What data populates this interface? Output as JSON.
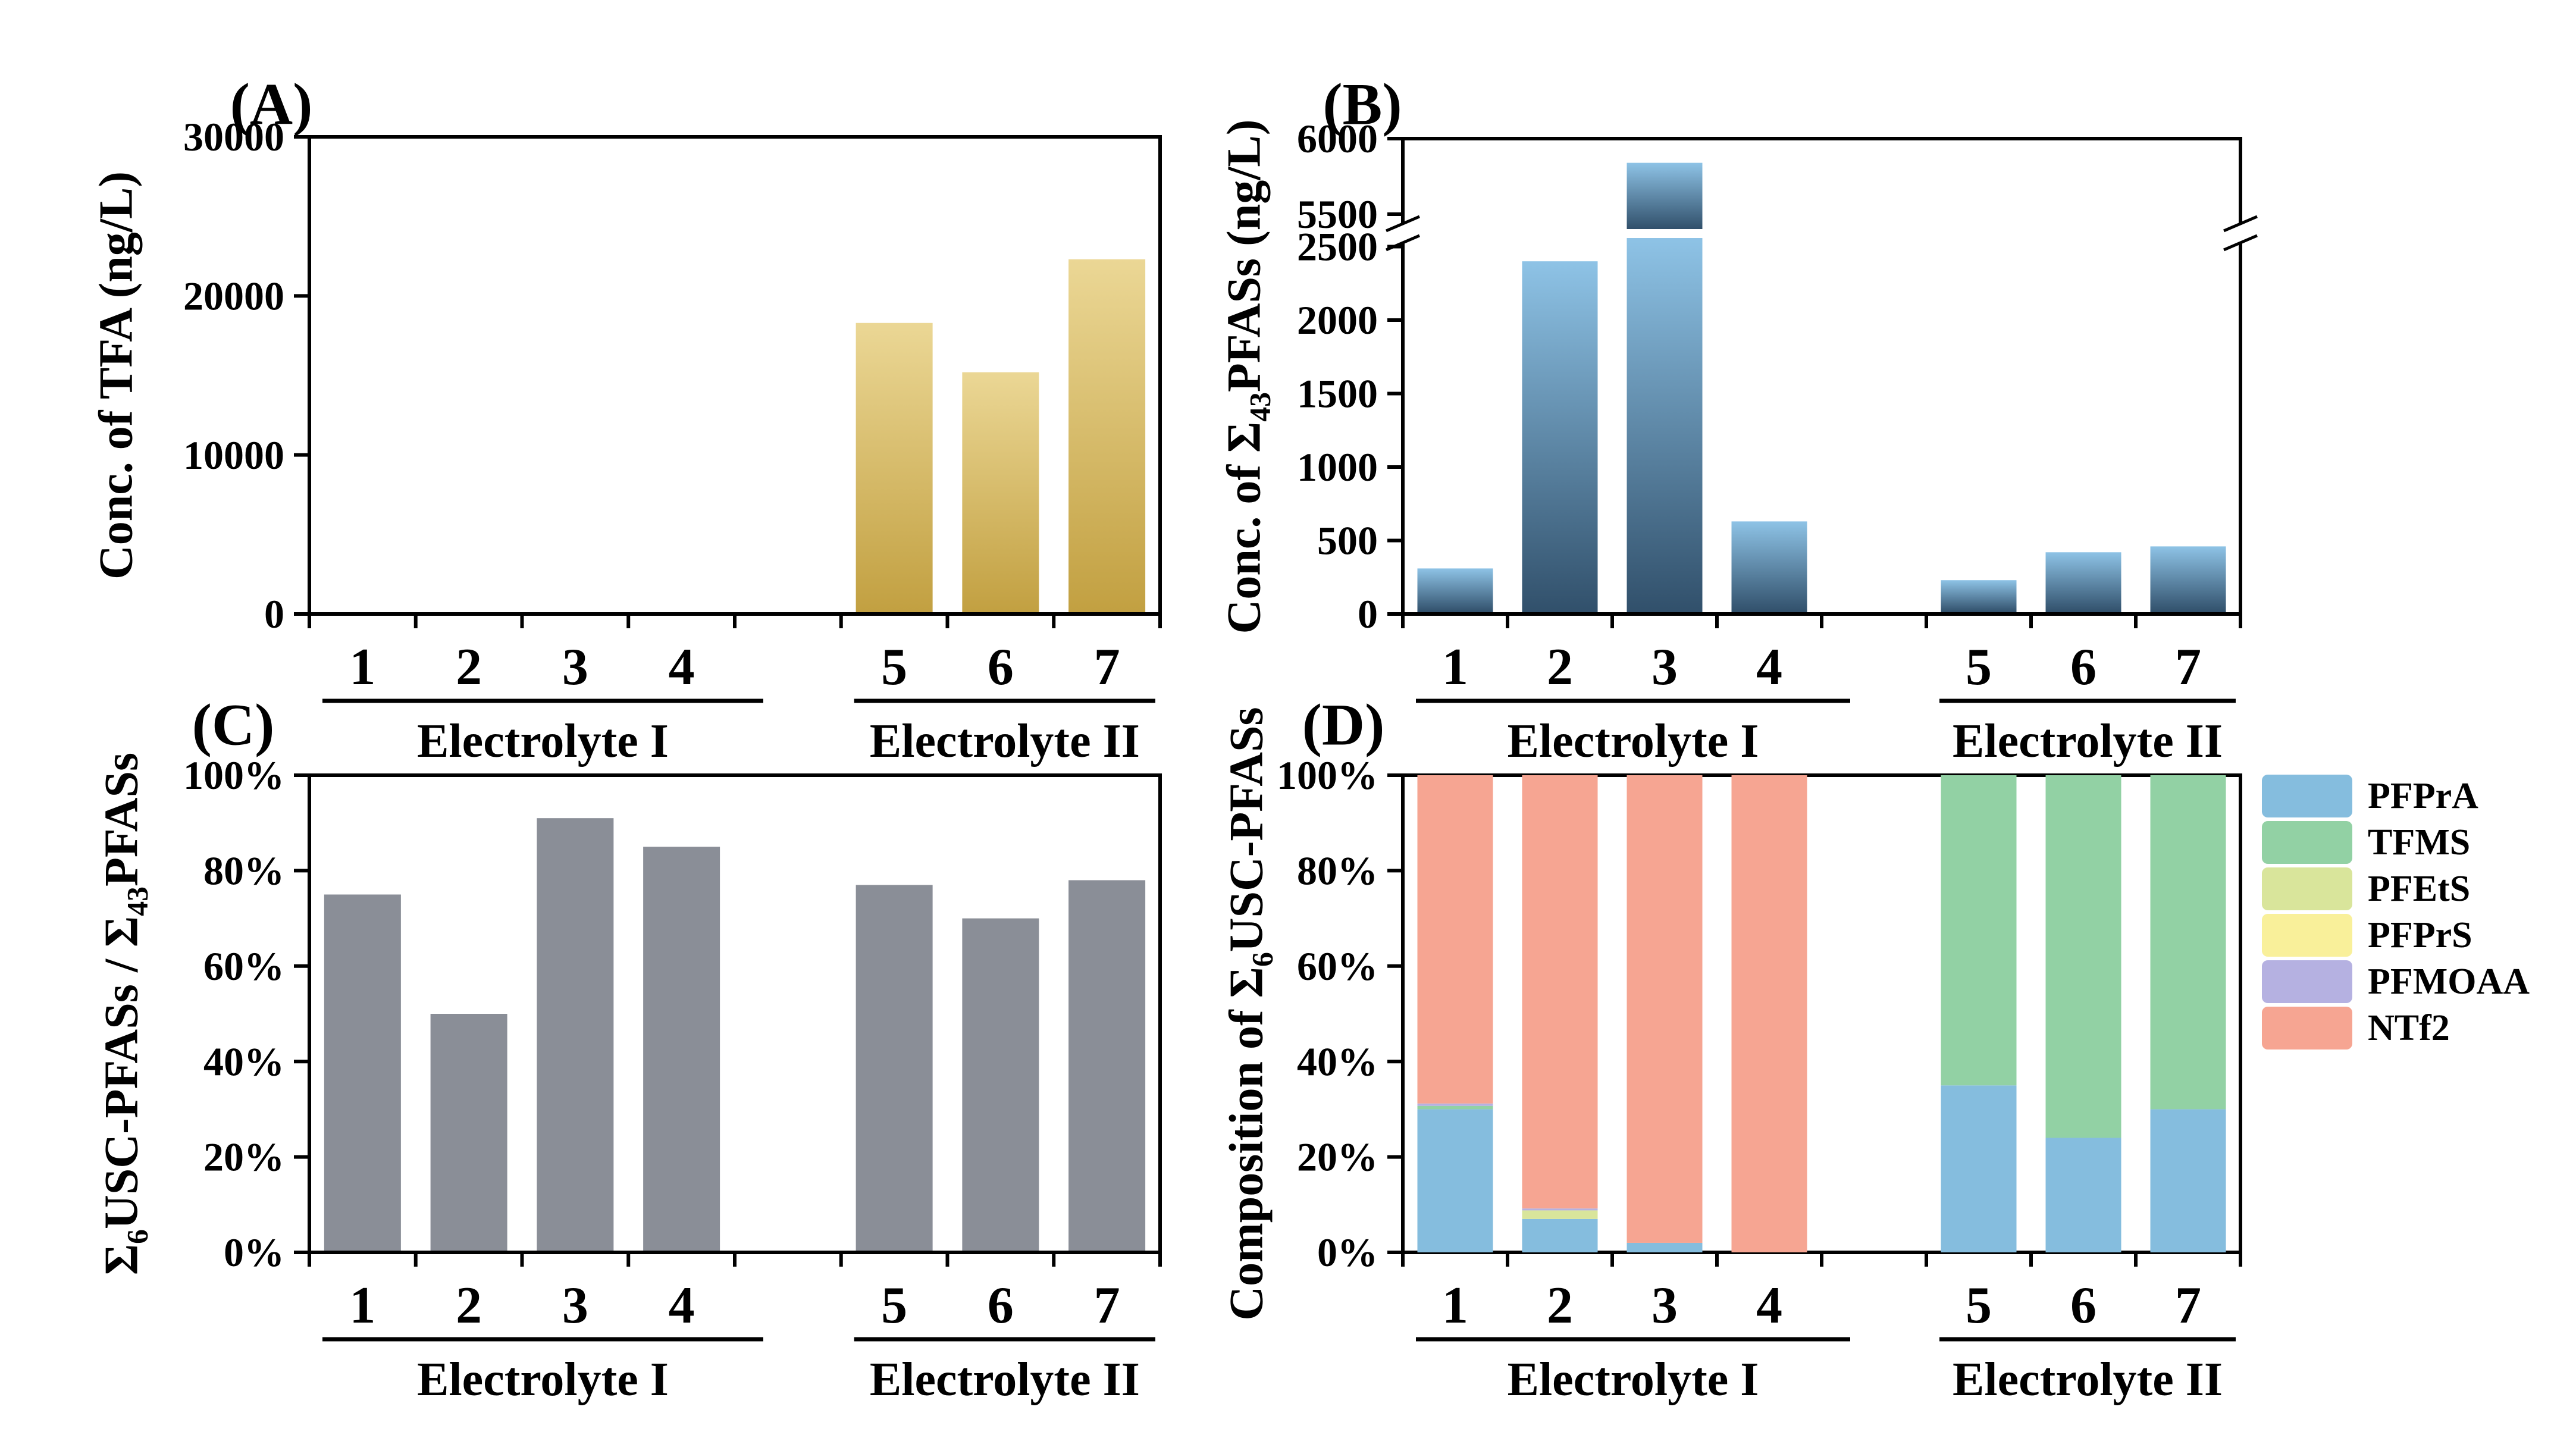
{
  "chart_data": [
    {
      "id": "A",
      "panel_label": "(A)",
      "type": "bar",
      "ylabel_parts": [
        {
          "t": "Conc. of TFA (ng/L)"
        }
      ],
      "ylim": [
        0,
        30000
      ],
      "yticks": [
        {
          "v": 0,
          "label": "0"
        },
        {
          "v": 10000,
          "label": "10000"
        },
        {
          "v": 20000,
          "label": "20000"
        },
        {
          "v": 30000,
          "label": "30000"
        }
      ],
      "categories": [
        "1",
        "2",
        "3",
        "4",
        "5",
        "6",
        "7"
      ],
      "groups": [
        {
          "label": "Electrolyte I",
          "cats": [
            "1",
            "2",
            "3",
            "4"
          ]
        },
        {
          "label": "Electrolyte II",
          "cats": [
            "5",
            "6",
            "7"
          ]
        }
      ],
      "values": [
        0,
        0,
        0,
        0,
        18300,
        15200,
        22300
      ],
      "bar_color_top": "#ebd795",
      "bar_color_bottom": "#c2a041",
      "grid": false
    },
    {
      "id": "B",
      "panel_label": "(B)",
      "type": "bar_broken_axis",
      "ylabel_parts": [
        {
          "t": "Conc. of Σ"
        },
        {
          "t": "43",
          "sub": true
        },
        {
          "t": "PFASs (ng/L)"
        }
      ],
      "ylim": [
        0,
        6000
      ],
      "axis_break": {
        "lower_max": 2560,
        "upper_min": 5400
      },
      "yticks_lower": [
        {
          "v": 0,
          "label": "0"
        },
        {
          "v": 500,
          "label": "500"
        },
        {
          "v": 1000,
          "label": "1000"
        },
        {
          "v": 1500,
          "label": "1500"
        },
        {
          "v": 2000,
          "label": "2000"
        },
        {
          "v": 2500,
          "label": "2500"
        }
      ],
      "yticks_upper": [
        {
          "v": 5500,
          "label": "5500"
        },
        {
          "v": 6000,
          "label": "6000"
        }
      ],
      "categories": [
        "1",
        "2",
        "3",
        "4",
        "5",
        "6",
        "7"
      ],
      "groups": [
        {
          "label": "Electrolyte I",
          "cats": [
            "1",
            "2",
            "3",
            "4"
          ]
        },
        {
          "label": "Electrolyte II",
          "cats": [
            "5",
            "6",
            "7"
          ]
        }
      ],
      "values": [
        310,
        2400,
        5840,
        630,
        230,
        420,
        460
      ],
      "bar_color_top": "#8ec3e6",
      "bar_color_bottom": "#31506b",
      "grid": false
    },
    {
      "id": "C",
      "panel_label": "(C)",
      "type": "bar",
      "ylabel_parts": [
        {
          "t": "Σ"
        },
        {
          "t": "6",
          "sub": true
        },
        {
          "t": "USC-PFASs / Σ"
        },
        {
          "t": "43",
          "sub": true
        },
        {
          "t": "PFASs"
        }
      ],
      "ylim": [
        0,
        100
      ],
      "yticks": [
        {
          "v": 0,
          "label": "0%"
        },
        {
          "v": 20,
          "label": "20%"
        },
        {
          "v": 40,
          "label": "40%"
        },
        {
          "v": 60,
          "label": "60%"
        },
        {
          "v": 80,
          "label": "80%"
        },
        {
          "v": 100,
          "label": "100%"
        }
      ],
      "categories": [
        "1",
        "2",
        "3",
        "4",
        "5",
        "6",
        "7"
      ],
      "groups": [
        {
          "label": "Electrolyte I",
          "cats": [
            "1",
            "2",
            "3",
            "4"
          ]
        },
        {
          "label": "Electrolyte II",
          "cats": [
            "5",
            "6",
            "7"
          ]
        }
      ],
      "values": [
        75,
        50,
        91,
        85,
        77,
        70,
        78
      ],
      "bar_color": "#8a8e97",
      "grid": false
    },
    {
      "id": "D",
      "panel_label": "(D)",
      "type": "stacked_bar_percent",
      "ylabel_parts": [
        {
          "t": "Composition of Σ"
        },
        {
          "t": "6",
          "sub": true
        },
        {
          "t": "USC-PFASs"
        }
      ],
      "ylim": [
        0,
        100
      ],
      "yticks": [
        {
          "v": 0,
          "label": "0%"
        },
        {
          "v": 20,
          "label": "20%"
        },
        {
          "v": 40,
          "label": "40%"
        },
        {
          "v": 60,
          "label": "60%"
        },
        {
          "v": 80,
          "label": "80%"
        },
        {
          "v": 100,
          "label": "100%"
        }
      ],
      "categories": [
        "1",
        "2",
        "3",
        "4",
        "5",
        "6",
        "7"
      ],
      "groups": [
        {
          "label": "Electrolyte I",
          "cats": [
            "1",
            "2",
            "3",
            "4"
          ]
        },
        {
          "label": "Electrolyte II",
          "cats": [
            "5",
            "6",
            "7"
          ]
        }
      ],
      "series": [
        {
          "name": "PFPrA",
          "color": "#85bdde",
          "values": [
            30,
            7,
            2,
            0,
            35,
            24,
            30
          ]
        },
        {
          "name": "TFMS",
          "color": "#92d1a4",
          "values": [
            0.7,
            0,
            0,
            0,
            65,
            76,
            70
          ]
        },
        {
          "name": "PFEtS",
          "color": "#d9e59b",
          "values": [
            0,
            1.8,
            0,
            0,
            0,
            0,
            0
          ]
        },
        {
          "name": "PFPrS",
          "color": "#f9f09a",
          "values": [
            0,
            0,
            0,
            0,
            0,
            0,
            0
          ]
        },
        {
          "name": "PFMOAA",
          "color": "#b5b1e1",
          "values": [
            0.5,
            0.4,
            0,
            0,
            0,
            0,
            0
          ]
        },
        {
          "name": "NTf2",
          "color": "#f6a592",
          "values": [
            68.8,
            90.8,
            98,
            100,
            0,
            0,
            0
          ]
        }
      ],
      "legend_position": "right",
      "grid": false
    }
  ]
}
